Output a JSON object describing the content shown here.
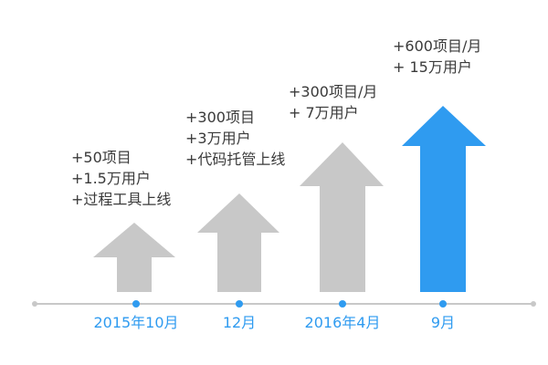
{
  "colors": {
    "gray_arrow": "#c8c8c8",
    "accent_arrow": "#2f9bf0",
    "timeline_line": "#c8c8c8",
    "timeline_dot": "#2f9bf0",
    "date_text": "#2f9bf0",
    "note_text": "#3a3a3a"
  },
  "milestones": [
    {
      "date": "2015年10月",
      "notes": [
        "+50项目",
        "+1.5万用户",
        "+过程工具上线"
      ],
      "highlight": false
    },
    {
      "date": "12月",
      "notes": [
        "+300项目",
        "+3万用户",
        "+代码托管上线"
      ],
      "highlight": false
    },
    {
      "date": "2016年4月",
      "notes": [
        "+300项目/月",
        "+ 7万用户"
      ],
      "highlight": false
    },
    {
      "date": "9月",
      "notes": [
        "+600项目/月",
        "+ 15万用户"
      ],
      "highlight": true
    }
  ]
}
